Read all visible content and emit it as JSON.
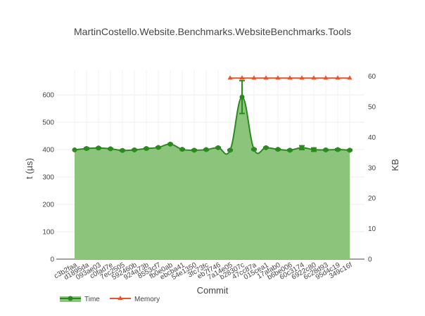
{
  "chart_data": {
    "type": "area",
    "title": "MartinCostello.Website.Benchmarks.WebsiteBenchmarks.Tools",
    "xlabel": "Commit",
    "ylabel": "t (µs)",
    "y2label": "KB",
    "ylim": [
      0,
      690
    ],
    "y2lim": [
      0,
      62
    ],
    "yticks": [
      0,
      100,
      200,
      300,
      400,
      500,
      600
    ],
    "y2ticks": [
      0,
      10,
      20,
      30,
      40,
      50,
      60
    ],
    "grid": true,
    "legend_placement": "bottom-left",
    "categories": [
      "c3b2faa",
      "d1895da",
      "093ae03",
      "c0fad7e",
      "7ec2505",
      "592460b",
      "924a73b",
      "8553cf7",
      "fb0e0ab",
      "ebcba41",
      "54e1350",
      "3fc73fc",
      "eb7f746",
      "7a14e05",
      "b28307c",
      "47cc87a",
      "015cea1",
      "17afab0",
      "b6be006",
      "60c3174",
      "6922c80",
      "6c28d93",
      "95d4c19",
      "349c16f"
    ],
    "series": [
      {
        "name": "Time",
        "axis": "y",
        "color": "#2a8a1e",
        "fill": "#8cc47c",
        "values": [
          399,
          404,
          406,
          403,
          397,
          399,
          404,
          408,
          420,
          401,
          398,
          400,
          407,
          398,
          592,
          401,
          407,
          401,
          398,
          407,
          400,
          399,
          400,
          398
        ],
        "error": [
          0,
          3,
          2,
          2,
          2,
          2,
          2,
          2,
          2,
          2,
          2,
          2,
          2,
          2,
          60,
          2,
          2,
          2,
          2,
          7,
          6,
          2,
          3,
          2
        ]
      },
      {
        "name": "Memory",
        "axis": "y2",
        "color": "#e8532b",
        "start_index": 13,
        "values": [
          null,
          null,
          null,
          null,
          null,
          null,
          null,
          null,
          null,
          null,
          null,
          null,
          null,
          59.4,
          59.4,
          59.4,
          59.4,
          59.4,
          59.4,
          59.4,
          59.4,
          59.4,
          59.4,
          59.4
        ]
      }
    ]
  }
}
